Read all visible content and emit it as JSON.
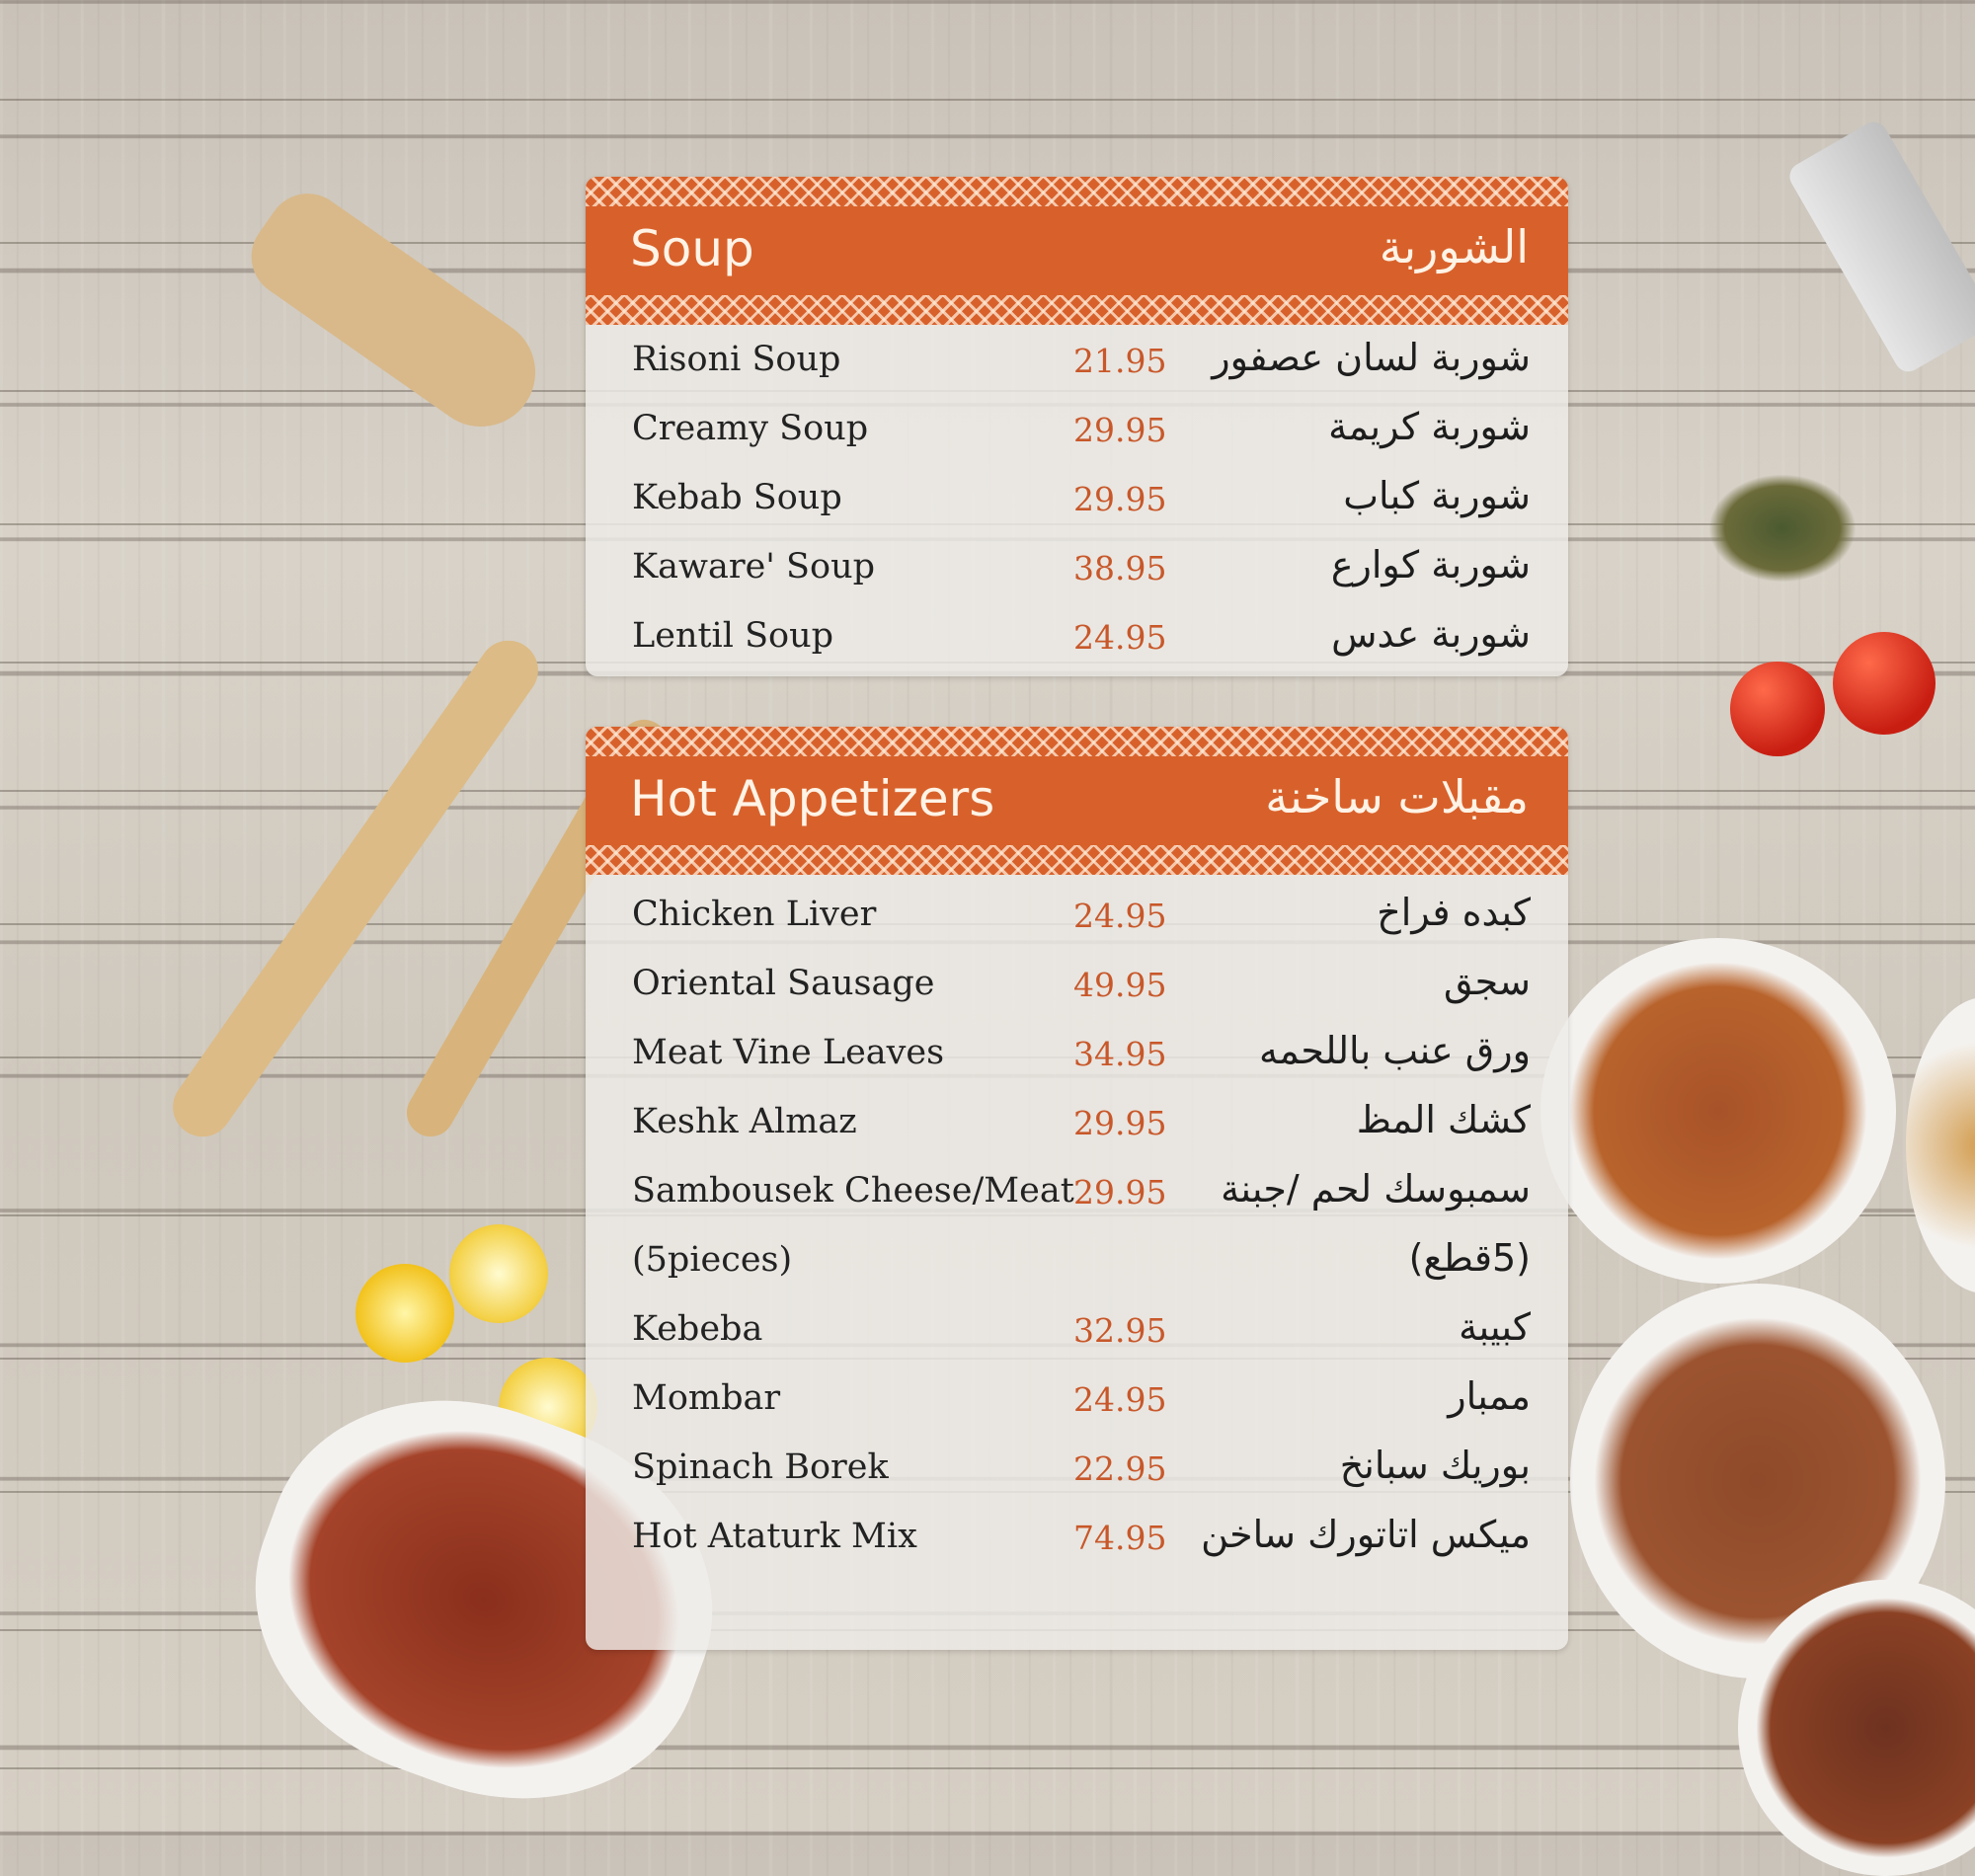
{
  "colors": {
    "accent": "#d8612b",
    "price": "#c8582a",
    "text": "#222222"
  },
  "soup": {
    "title_en": "Soup",
    "title_ar": "الشوربة",
    "items": [
      {
        "en": "Risoni Soup",
        "price": "21.95",
        "ar": "شوربة لسان عصفور"
      },
      {
        "en": "Creamy Soup",
        "price": "29.95",
        "ar": "شوربة كريمة"
      },
      {
        "en": "Kebab Soup",
        "price": "29.95",
        "ar": "شوربة كباب"
      },
      {
        "en": "Kaware' Soup",
        "price": "38.95",
        "ar": "شوربة كوارع"
      },
      {
        "en": "Lentil Soup",
        "price": "24.95",
        "ar": "شوربة عدس"
      }
    ]
  },
  "hot": {
    "title_en": "Hot Appetizers",
    "title_ar": "مقبلات ساخنة",
    "items": [
      {
        "en": "Chicken Liver",
        "price": "24.95",
        "ar": "كبده فراخ"
      },
      {
        "en": "Oriental Sausage",
        "price": "49.95",
        "ar": "سجق"
      },
      {
        "en": "Meat Vine Leaves",
        "price": "34.95",
        "ar": "ورق عنب باللحمه"
      },
      {
        "en": "Keshk Almaz",
        "price": "29.95",
        "ar": "كشك المظ"
      },
      {
        "en": "Sambousek Cheese/Meat",
        "price": "29.95",
        "ar": "سمبوسك لحم /جبنة"
      },
      {
        "en": "(5pieces)",
        "price": "",
        "ar": "(5قطع)"
      },
      {
        "en": "Kebeba",
        "price": "32.95",
        "ar": "كبيبة"
      },
      {
        "en": "Mombar",
        "price": "24.95",
        "ar": "ممبار"
      },
      {
        "en": "Spinach Borek",
        "price": "22.95",
        "ar": "بوريك سبانخ"
      },
      {
        "en": "Hot Ataturk Mix",
        "price": "74.95",
        "ar": "ميكس اتاتورك ساخن"
      }
    ]
  }
}
